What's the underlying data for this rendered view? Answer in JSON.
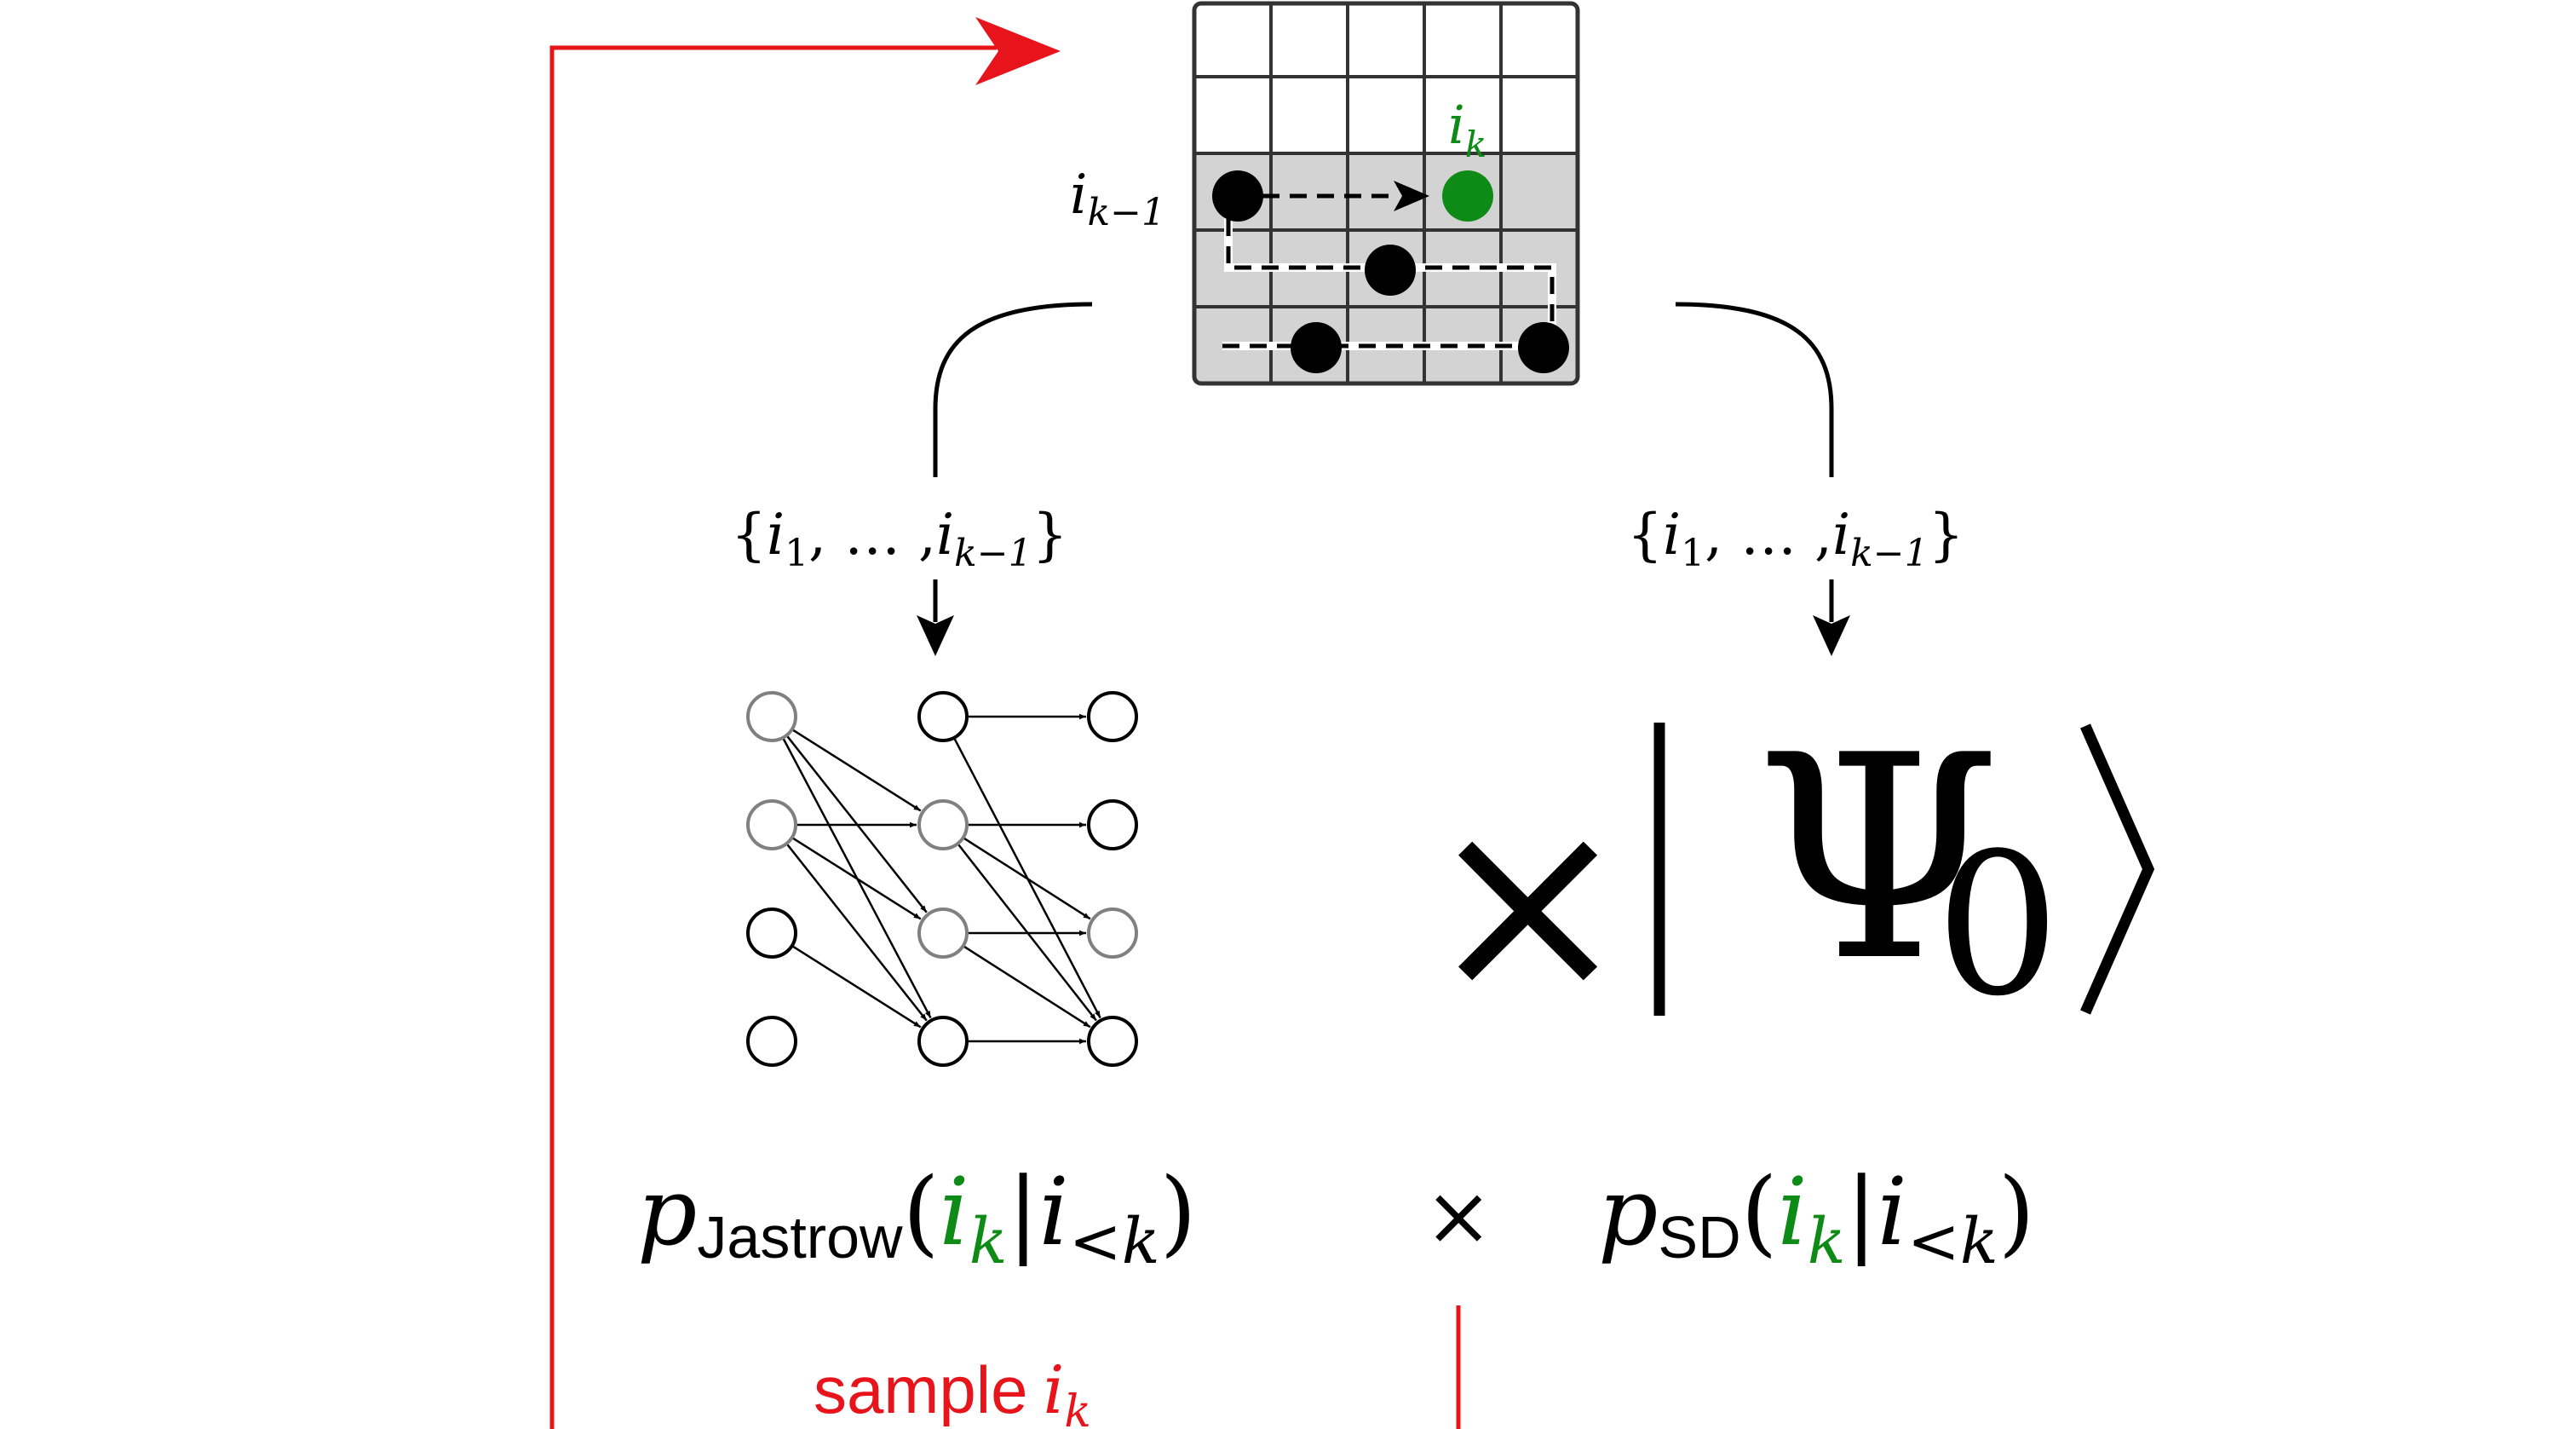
{
  "colors": {
    "loop": "#e8141c",
    "highlight": "#0e8a16",
    "ink": "#000000",
    "grid_fill": "#d3d3d3",
    "neuron_gray": "#808080"
  },
  "lattice": {
    "label_current": {
      "base": "i",
      "sub": "k"
    },
    "label_previous": {
      "base": "i",
      "sub": "k−1"
    }
  },
  "conditioning": {
    "left": {
      "open": "{",
      "i1": "i",
      "i1_sub": "1",
      "dots": ", … ,",
      "ik": "i",
      "ik_sub": "k−1",
      "close": "}"
    },
    "right": {
      "open": "{",
      "i1": "i",
      "i1_sub": "1",
      "dots": ", … ,",
      "ik": "i",
      "ik_sub": "k−1",
      "close": "}"
    }
  },
  "psi": {
    "times": "×",
    "bar": "|",
    "symbol": "Ψ",
    "sub": "0",
    "angle": "⟩"
  },
  "formula": {
    "jastrow": {
      "p": "p",
      "sub": "Jastrow",
      "lparen": "(",
      "ik": "i",
      "ik_sub": "k",
      "bar": "|",
      "ilt": "i",
      "ilt_sub": "<k",
      "rparen": ")"
    },
    "times": "×",
    "sd": {
      "p": "p",
      "sub": "SD",
      "lparen": "(",
      "ik": "i",
      "ik_sub": "k",
      "bar": "|",
      "ilt": "i",
      "ilt_sub": "<k",
      "rparen": ")"
    }
  },
  "loop": {
    "label": "sample",
    "var": "i",
    "var_sub": "k"
  }
}
